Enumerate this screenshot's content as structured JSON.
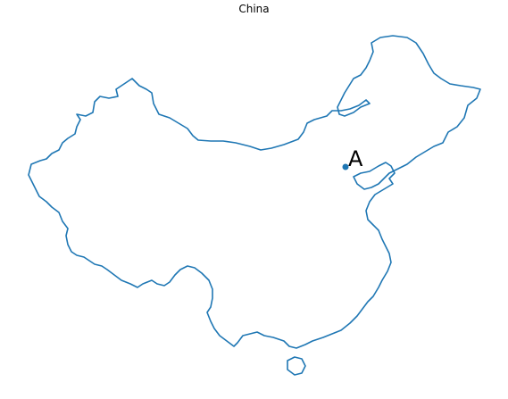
{
  "map": {
    "title": "China",
    "outline_color": "#1f77b4",
    "marker": {
      "label": "A",
      "color": "#1f77b4"
    }
  }
}
